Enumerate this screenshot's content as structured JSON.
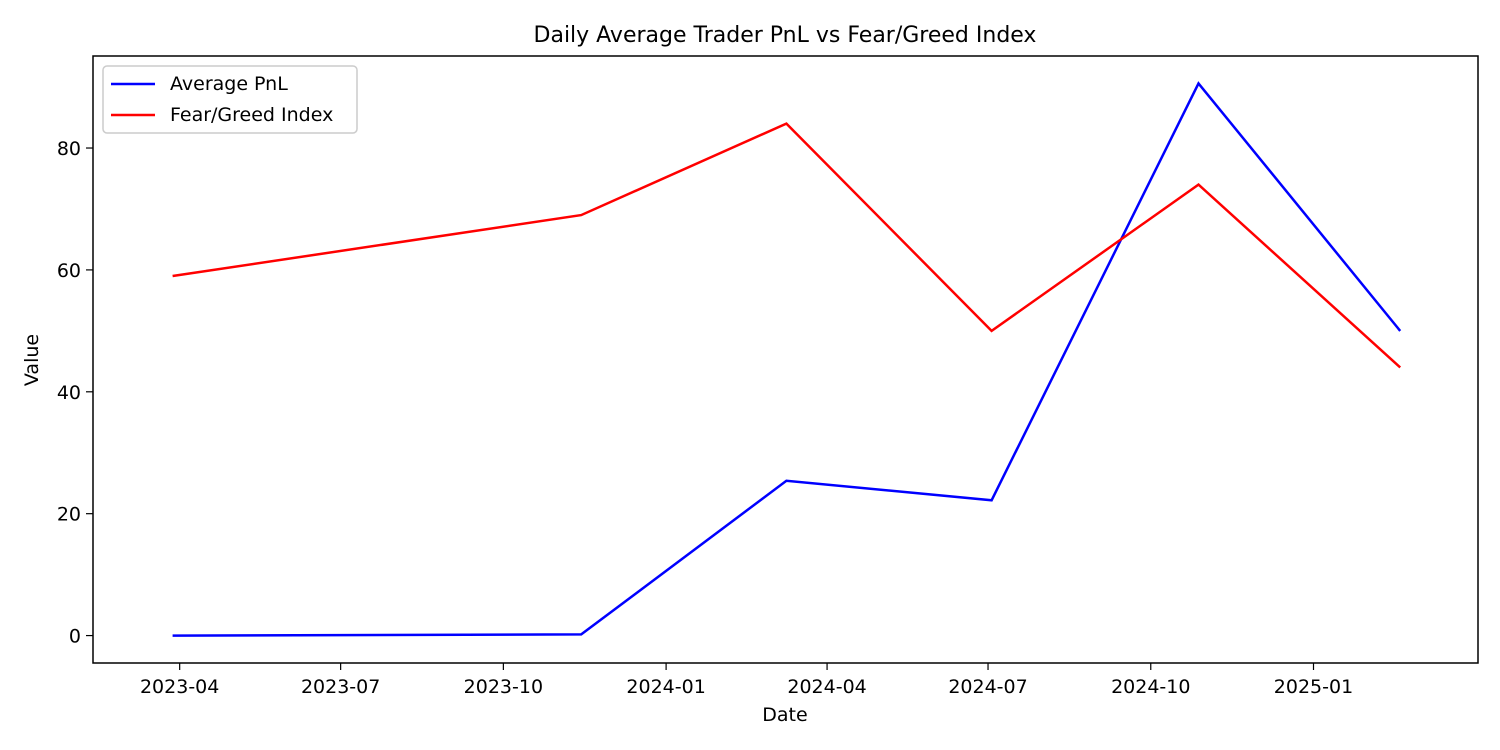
{
  "chart_data": {
    "type": "line",
    "title": "Daily Average Trader PnL vs Fear/Greed Index",
    "xlabel": "Date",
    "ylabel": "Value",
    "x_axis_type": "date",
    "xlim": [
      "2023-02-11",
      "2025-04-04"
    ],
    "ylim": [
      -4.5,
      95.1
    ],
    "x_ticks": [
      "2023-04-01",
      "2023-07-01",
      "2023-10-01",
      "2024-01-01",
      "2024-04-01",
      "2024-07-01",
      "2024-10-01",
      "2025-01-01"
    ],
    "x_tick_labels": [
      "2023-04",
      "2023-07",
      "2023-10",
      "2024-01",
      "2024-04",
      "2024-07",
      "2024-10",
      "2025-01"
    ],
    "y_ticks": [
      0,
      20,
      40,
      60,
      80
    ],
    "y_tick_labels": [
      "0",
      "20",
      "40",
      "60",
      "80"
    ],
    "grid": false,
    "legend_position": "upper left",
    "series": [
      {
        "name": "Average PnL",
        "color": "#0000ff",
        "x": [
          "2023-03-28",
          "2023-11-14",
          "2024-03-09",
          "2024-07-03",
          "2024-10-28",
          "2025-02-19"
        ],
        "y": [
          0,
          0.2,
          25.4,
          22.2,
          90.6,
          50.0
        ]
      },
      {
        "name": "Fear/Greed Index",
        "color": "#ff0000",
        "x": [
          "2023-03-28",
          "2023-11-14",
          "2024-03-09",
          "2024-07-03",
          "2024-10-28",
          "2025-02-19"
        ],
        "y": [
          59,
          69,
          84,
          50,
          74,
          44
        ]
      }
    ]
  }
}
